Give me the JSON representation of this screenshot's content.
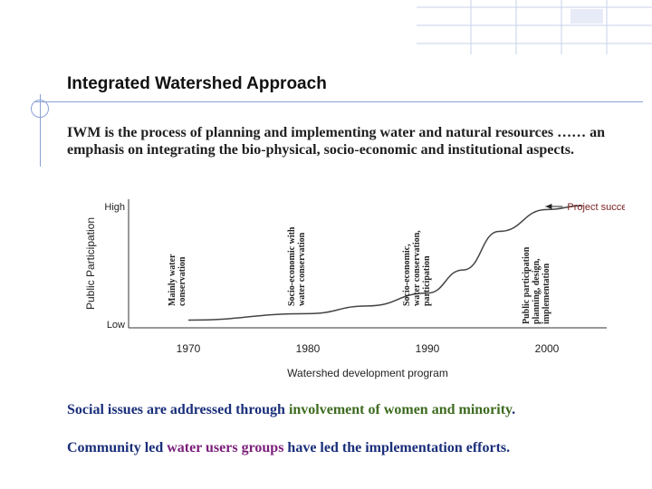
{
  "slide": {
    "title": "Integrated Watershed Approach",
    "definition": "IWM is the process of planning and implementing water and natural resources …… an emphasis on integrating the bio-physical, socio-economic and institutional aspects.",
    "bottom1_a": "Social issues are addressed through ",
    "bottom1_b": "involvement of women and minority",
    "bottom1_c": ".",
    "bottom2_a": "Community led ",
    "bottom2_b": "water users groups",
    "bottom2_c": " have led the implementation efforts."
  },
  "chart_data": {
    "type": "line",
    "xlabel": "Watershed development program",
    "ylabel": "Public Participation",
    "y_ticks": [
      "High",
      "Low"
    ],
    "x": [
      1970,
      1980,
      1990,
      2000
    ],
    "xlim": [
      1965,
      2005
    ],
    "ylim": [
      0,
      1
    ],
    "series": [
      {
        "x": [
          1970,
          1980,
          1985,
          1990,
          1993,
          1996,
          2000,
          2003
        ],
        "values": [
          0.06,
          0.11,
          0.17,
          0.27,
          0.45,
          0.75,
          0.92,
          0.95
        ]
      }
    ],
    "phase_labels": [
      [
        "Mainly water",
        "conservation"
      ],
      [
        "Socio-economic with",
        "water conservation"
      ],
      [
        "Socio-economic,",
        "water conservation,",
        "participation"
      ],
      [
        "Public participation",
        "planning, design,",
        "implementation"
      ]
    ],
    "annotation": "Project success"
  }
}
